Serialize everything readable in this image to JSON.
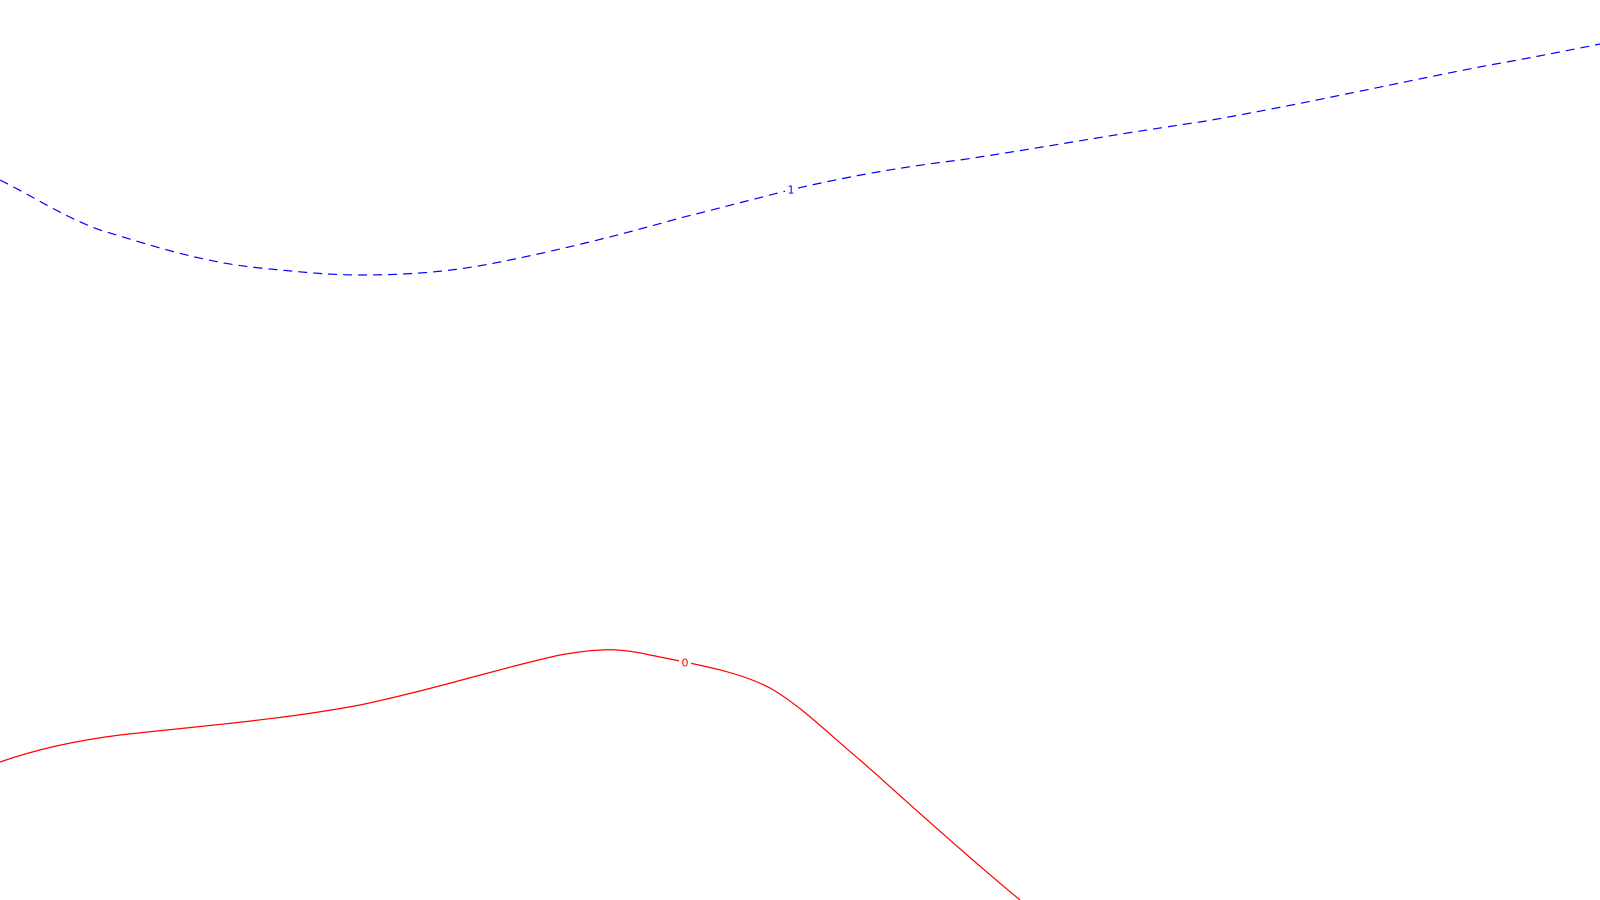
{
  "contours": [
    {
      "id": "contour-1",
      "label": "1",
      "color": "#0000ff",
      "style": "dashed"
    },
    {
      "id": "contour-0",
      "label": "0",
      "color": "#ff0000",
      "style": "solid"
    }
  ]
}
